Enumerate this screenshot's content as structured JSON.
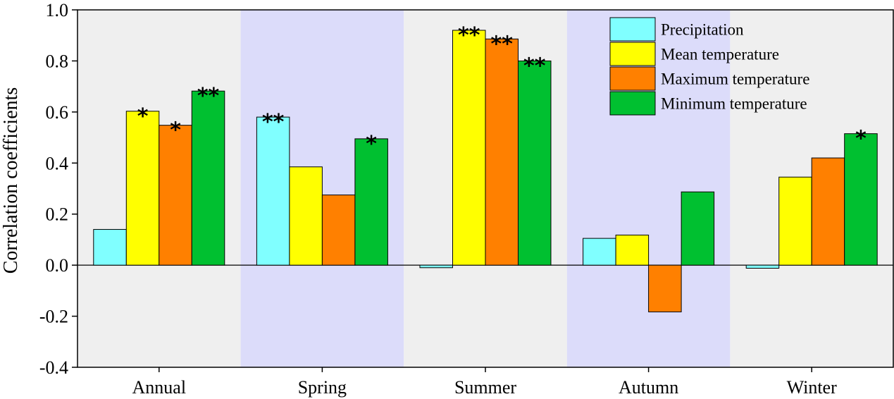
{
  "chart_data": {
    "type": "bar",
    "title": "",
    "xlabel": "",
    "ylabel": "Correlation coefficients",
    "ylim": [
      -0.4,
      1.0
    ],
    "yticks": [
      "-0.4",
      "-0.2",
      "0.0",
      "0.2",
      "0.4",
      "0.6",
      "0.8",
      "1.0"
    ],
    "categories": [
      "Annual",
      "Spring",
      "Summer",
      "Autumn",
      "Winter"
    ],
    "group_backgrounds": [
      "#efefef",
      "#dcdcfa",
      "#efefef",
      "#dcdcfa",
      "#efefef"
    ],
    "legend_position": "top-right",
    "series": [
      {
        "name": "Precipitation",
        "color": "#80ffff",
        "values": [
          0.14,
          0.58,
          -0.01,
          0.105,
          -0.012
        ],
        "significance": [
          "",
          "**",
          "",
          "",
          ""
        ]
      },
      {
        "name": "Mean temperature",
        "color": "#ffff00",
        "values": [
          0.603,
          0.385,
          0.92,
          0.118,
          0.345
        ],
        "significance": [
          "*",
          "",
          "**",
          "",
          ""
        ]
      },
      {
        "name": "Maximum temperature",
        "color": "#ff8000",
        "values": [
          0.548,
          0.275,
          0.886,
          -0.183,
          0.42
        ],
        "significance": [
          "*",
          "",
          "**",
          "",
          ""
        ]
      },
      {
        "name": "Minimum temperature",
        "color": "#00c030",
        "values": [
          0.682,
          0.495,
          0.8,
          0.287,
          0.515
        ],
        "significance": [
          "**",
          "*",
          "**",
          "",
          "*"
        ]
      }
    ]
  }
}
